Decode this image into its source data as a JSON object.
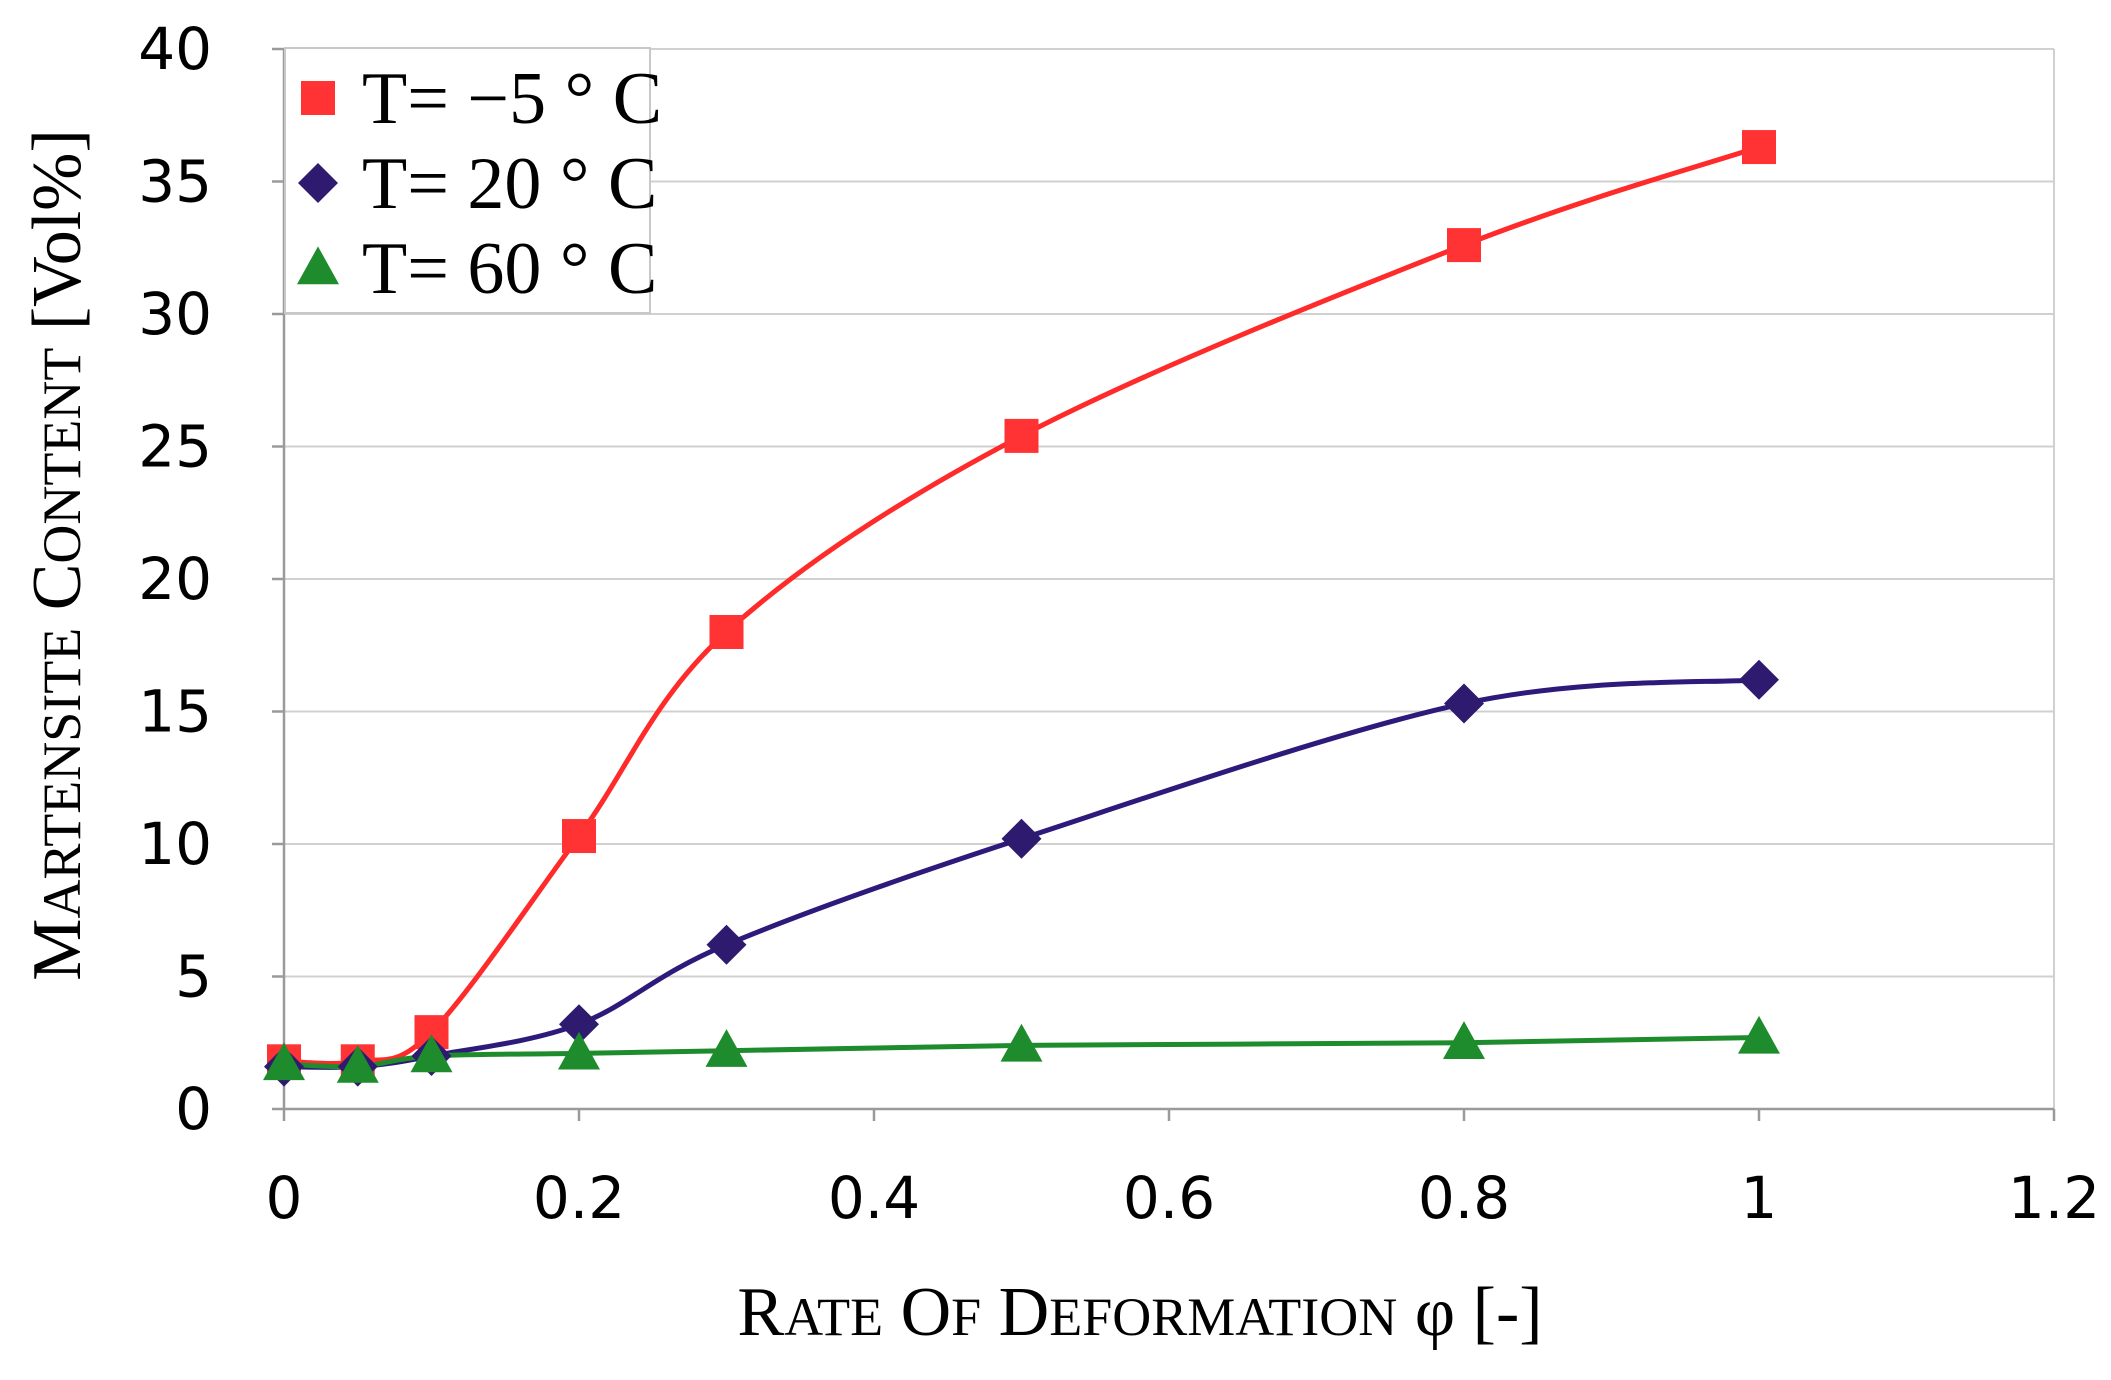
{
  "chart_data": {
    "type": "line",
    "xlabel": "Rate of Deformation φ [-]",
    "ylabel": "Martensite Content [Vol%]",
    "xlim": [
      0,
      1.2
    ],
    "ylim": [
      0,
      40
    ],
    "xticks": [
      0,
      0.2,
      0.4,
      0.6,
      0.8,
      1,
      1.2
    ],
    "xtick_labels": [
      "0",
      "0.2",
      "0.4",
      "0.6",
      "0.8",
      "1",
      "1.2"
    ],
    "yticks": [
      0,
      5,
      10,
      15,
      20,
      25,
      30,
      35,
      40
    ],
    "ytick_labels": [
      "0",
      "5",
      "10",
      "15",
      "20",
      "25",
      "30",
      "35",
      "40"
    ],
    "grid": "horizontal",
    "legend_position": "top-left",
    "series": [
      {
        "name": "T= −5 ° C",
        "marker": "square",
        "color": "#ff3333",
        "line_color": "#ff2a2a",
        "x": [
          0,
          0.05,
          0.1,
          0.2,
          0.3,
          0.5,
          0.8,
          1
        ],
        "y": [
          1.8,
          1.8,
          2.9,
          10.3,
          18.0,
          25.4,
          32.6,
          36.3
        ]
      },
      {
        "name": "T= 20 ° C",
        "marker": "diamond",
        "color": "#2e1a6e",
        "line_color": "#2e1a7a",
        "x": [
          0,
          0.05,
          0.1,
          0.2,
          0.3,
          0.5,
          0.8,
          1
        ],
        "y": [
          1.6,
          1.6,
          2.0,
          3.2,
          6.2,
          10.2,
          15.3,
          16.2
        ]
      },
      {
        "name": "T= 60 ° C",
        "marker": "triangle",
        "color": "#1e8c2c",
        "line_color": "#1e8c2c",
        "x": [
          0,
          0.05,
          0.1,
          0.2,
          0.3,
          0.5,
          0.8,
          1
        ],
        "y": [
          1.7,
          1.6,
          2.0,
          2.1,
          2.2,
          2.4,
          2.5,
          2.7
        ]
      }
    ]
  }
}
